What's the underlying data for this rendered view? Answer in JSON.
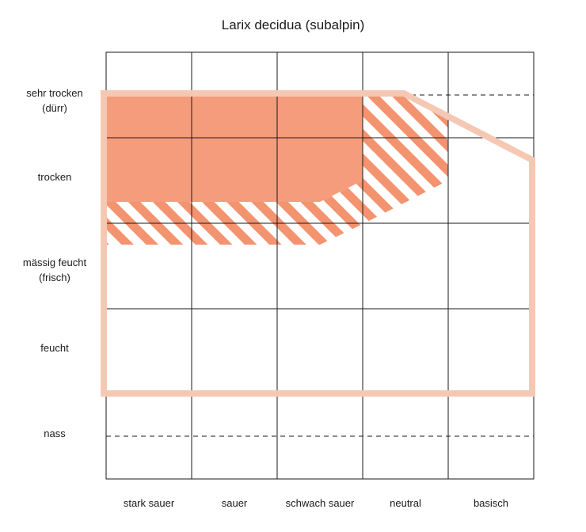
{
  "title": "Larix decidua (subalpin)",
  "rows": [
    {
      "line1": "sehr trocken",
      "line2": "(dürr)"
    },
    {
      "line1": "trocken",
      "line2": ""
    },
    {
      "line1": "mässig feucht",
      "line2": "(frisch)"
    },
    {
      "line1": "feucht",
      "line2": ""
    },
    {
      "line1": "nass",
      "line2": ""
    }
  ],
  "columns": [
    "stark sauer",
    "sauer",
    "schwach sauer",
    "neutral",
    "basisch"
  ],
  "colors": {
    "core": "#f59c7c",
    "stripe": "#f3936f",
    "outline": "#f5c8b3",
    "grid": "#1a1a1a"
  }
}
